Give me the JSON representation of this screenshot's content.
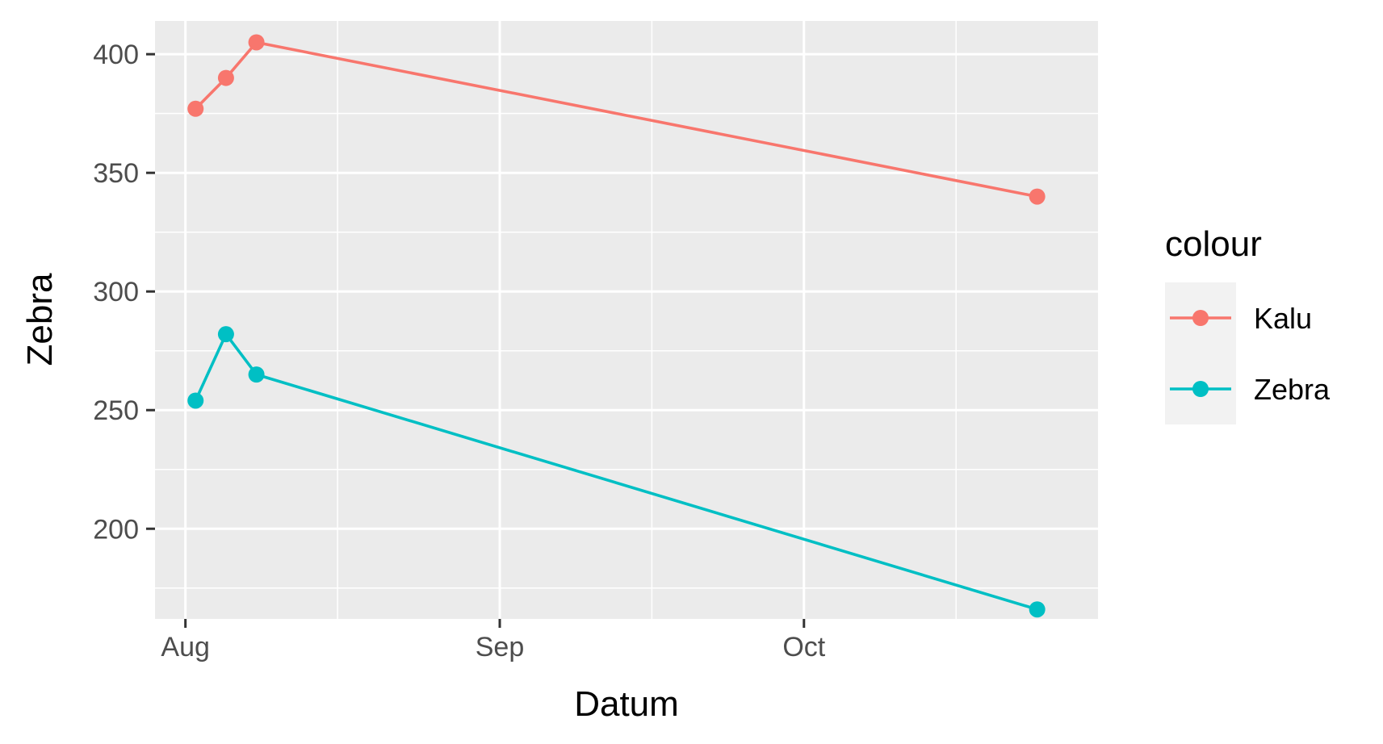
{
  "chart_data": {
    "type": "line",
    "x_axis_type": "date",
    "title": "",
    "xlabel": "Datum",
    "ylabel": "Zebra",
    "x_tick_labels": [
      {
        "date": "2023-08-01",
        "label": "Aug"
      },
      {
        "date": "2023-09-01",
        "label": "Sep"
      },
      {
        "date": "2023-10-01",
        "label": "Oct"
      }
    ],
    "x_minor_breaks": [
      "2023-08-16",
      "2023-09-16",
      "2023-10-16"
    ],
    "xlim": [
      "2023-07-29",
      "2023-10-30"
    ],
    "ylim": [
      162,
      414
    ],
    "y_ticks": [
      200,
      250,
      300,
      350,
      400
    ],
    "y_minor_breaks": [
      175,
      225,
      275,
      325,
      375
    ],
    "grid": true,
    "legend": {
      "title": "colour",
      "placement": "right"
    },
    "series": [
      {
        "name": "Kalu",
        "color": "#F8766D",
        "points": [
          {
            "x": "2023-08-02",
            "y": 377
          },
          {
            "x": "2023-08-05",
            "y": 390
          },
          {
            "x": "2023-08-08",
            "y": 405
          },
          {
            "x": "2023-10-24",
            "y": 340
          }
        ]
      },
      {
        "name": "Zebra",
        "color": "#00BFC4",
        "points": [
          {
            "x": "2023-08-02",
            "y": 254
          },
          {
            "x": "2023-08-05",
            "y": 282
          },
          {
            "x": "2023-08-08",
            "y": 265
          },
          {
            "x": "2023-10-24",
            "y": 166
          }
        ]
      }
    ]
  }
}
